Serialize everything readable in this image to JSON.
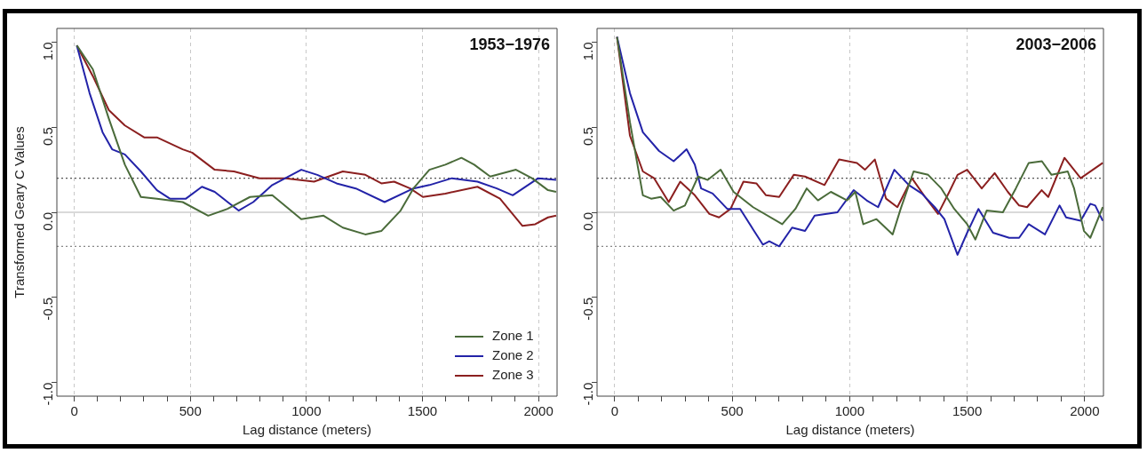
{
  "chart_data": [
    {
      "type": "line",
      "title": "1953−1976",
      "xlabel": "Lag distance (meters)",
      "ylabel": "Transformed Geary C Values",
      "xlim": [
        -75,
        2080
      ],
      "ylim": [
        -1.08,
        1.08
      ],
      "xticks": [
        0,
        {
          "value": 100,
          "label": null
        },
        {
          "value": 200,
          "label": null
        },
        {
          "value": 300,
          "label": null
        },
        {
          "value": 400,
          "label": null
        },
        500,
        {
          "value": 600,
          "label": null
        },
        {
          "value": 700,
          "label": null
        },
        {
          "value": 800,
          "label": null
        },
        {
          "value": 900,
          "label": null
        },
        1000,
        {
          "value": 1100,
          "label": null
        },
        {
          "value": 1200,
          "label": null
        },
        {
          "value": 1300,
          "label": null
        },
        {
          "value": 1400,
          "label": null
        },
        1500,
        {
          "value": 1600,
          "label": null
        },
        {
          "value": 1700,
          "label": null
        },
        {
          "value": 1800,
          "label": null
        },
        {
          "value": 1900,
          "label": null
        },
        2000
      ],
      "yticks": [
        {
          "value": -1,
          "label": "-1.0"
        },
        {
          "value": -0.5,
          "label": "-0.5"
        },
        {
          "value": 0,
          "label": "0.0"
        },
        {
          "value": 0.5,
          "label": "0.5"
        },
        {
          "value": 1,
          "label": "1.0"
        }
      ],
      "grid": "x",
      "legend": "bottom right",
      "line_style": "solid",
      "marker": "none",
      "ref_lines": [
        {
          "axis": "y",
          "value": 0,
          "color": "#cccccc",
          "line_style": "solid"
        },
        {
          "axis": "y",
          "value": 0.2,
          "color": "#555555",
          "line_style": "dotted"
        },
        {
          "axis": "y",
          "value": -0.2,
          "color": "#888888",
          "line_style": "dotted"
        }
      ],
      "series": [
        {
          "name": "Zone 1",
          "color": "#4a6b3a",
          "x": [
            11,
            80,
            149,
            218,
            287,
            356,
            467,
            577,
            660,
            757,
            853,
            978,
            1074,
            1157,
            1254,
            1323,
            1406,
            1461,
            1530,
            1599,
            1668,
            1723,
            1792,
            1903,
            1972,
            2041,
            2076
          ],
          "values": [
            0.98,
            0.84,
            0.55,
            0.28,
            0.09,
            0.08,
            0.06,
            -0.02,
            0.02,
            0.09,
            0.1,
            -0.04,
            -0.02,
            -0.09,
            -0.13,
            -0.11,
            0.01,
            0.14,
            0.25,
            0.28,
            0.32,
            0.28,
            0.21,
            0.25,
            0.2,
            0.13,
            0.12
          ]
        },
        {
          "name": "Zone 2",
          "color": "#2323a8",
          "x": [
            11,
            66,
            122,
            163,
            218,
            287,
            356,
            412,
            481,
            550,
            605,
            708,
            771,
            853,
            978,
            1047,
            1130,
            1213,
            1337,
            1461,
            1530,
            1627,
            1737,
            1820,
            1889,
            1999,
            2076
          ],
          "values": [
            0.98,
            0.7,
            0.47,
            0.37,
            0.34,
            0.24,
            0.13,
            0.08,
            0.08,
            0.15,
            0.12,
            0.01,
            0.06,
            0.16,
            0.25,
            0.22,
            0.17,
            0.14,
            0.06,
            0.14,
            0.16,
            0.2,
            0.18,
            0.14,
            0.1,
            0.2,
            0.19
          ]
        },
        {
          "name": "Zone 3",
          "color": "#8b1f1f",
          "x": [
            11,
            80,
            149,
            218,
            301,
            356,
            467,
            508,
            605,
            688,
            798,
            909,
            1033,
            1157,
            1254,
            1323,
            1378,
            1447,
            1502,
            1599,
            1737,
            1834,
            1931,
            1986,
            2041,
            2076
          ],
          "values": [
            0.98,
            0.8,
            0.6,
            0.51,
            0.44,
            0.44,
            0.37,
            0.35,
            0.25,
            0.24,
            0.2,
            0.2,
            0.18,
            0.24,
            0.22,
            0.17,
            0.18,
            0.14,
            0.09,
            0.11,
            0.15,
            0.08,
            -0.08,
            -0.07,
            -0.03,
            -0.02
          ]
        }
      ]
    },
    {
      "type": "line",
      "title": "2003−2006",
      "xlabel": "Lag distance (meters)",
      "xlim": [
        -75,
        2080
      ],
      "ylim": [
        -1.08,
        1.08
      ],
      "xticks": [
        0,
        {
          "value": 100,
          "label": null
        },
        {
          "value": 200,
          "label": null
        },
        {
          "value": 300,
          "label": null
        },
        {
          "value": 400,
          "label": null
        },
        500,
        {
          "value": 600,
          "label": null
        },
        {
          "value": 700,
          "label": null
        },
        {
          "value": 800,
          "label": null
        },
        {
          "value": 900,
          "label": null
        },
        1000,
        {
          "value": 1100,
          "label": null
        },
        {
          "value": 1200,
          "label": null
        },
        {
          "value": 1300,
          "label": null
        },
        {
          "value": 1400,
          "label": null
        },
        1500,
        {
          "value": 1600,
          "label": null
        },
        {
          "value": 1700,
          "label": null
        },
        {
          "value": 1800,
          "label": null
        },
        {
          "value": 1900,
          "label": null
        },
        2000
      ],
      "yticks": [
        {
          "value": -1,
          "label": "-1.0"
        },
        {
          "value": -0.5,
          "label": "-0.5"
        },
        {
          "value": 0,
          "label": "0.0"
        },
        {
          "value": 0.5,
          "label": "0.5"
        },
        {
          "value": 1,
          "label": "1.0"
        }
      ],
      "grid": "x",
      "line_style": "solid",
      "marker": "none",
      "ref_lines": [
        {
          "axis": "y",
          "value": 0,
          "color": "#cccccc",
          "line_style": "solid"
        },
        {
          "axis": "y",
          "value": 0.2,
          "color": "#555555",
          "line_style": "dotted"
        },
        {
          "axis": "y",
          "value": -0.2,
          "color": "#888888",
          "line_style": "dotted"
        }
      ],
      "series": [
        {
          "color": "#4a6b3a",
          "x": [
            10,
            65,
            120,
            155,
            196,
            251,
            299,
            355,
            396,
            451,
            506,
            589,
            713,
            769,
            817,
            865,
            920,
            989,
            1024,
            1058,
            1114,
            1183,
            1217,
            1272,
            1334,
            1390,
            1445,
            1500,
            1535,
            1583,
            1652,
            1707,
            1762,
            1818,
            1859,
            1928,
            1955,
            1997,
            2024,
            2077
          ],
          "values": [
            1.03,
            0.53,
            0.1,
            0.08,
            0.09,
            0.01,
            0.04,
            0.21,
            0.19,
            0.25,
            0.12,
            0.03,
            -0.07,
            0.02,
            0.14,
            0.07,
            0.12,
            0.07,
            0.12,
            -0.07,
            -0.04,
            -0.13,
            0.02,
            0.24,
            0.22,
            0.14,
            0.02,
            -0.07,
            -0.16,
            0.01,
            0.0,
            0.14,
            0.29,
            0.3,
            0.22,
            0.24,
            0.14,
            -0.11,
            -0.15,
            0.03
          ]
        },
        {
          "color": "#2323a8",
          "x": [
            10,
            65,
            120,
            189,
            251,
            306,
            341,
            368,
            417,
            479,
            534,
            589,
            631,
            658,
            700,
            755,
            810,
            851,
            948,
            1017,
            1072,
            1121,
            1190,
            1252,
            1307,
            1362,
            1403,
            1459,
            1500,
            1548,
            1610,
            1679,
            1721,
            1762,
            1831,
            1893,
            1921,
            1983,
            2024,
            2045,
            2077
          ],
          "values": [
            1.03,
            0.7,
            0.47,
            0.36,
            0.3,
            0.37,
            0.28,
            0.14,
            0.11,
            0.02,
            0.02,
            -0.1,
            -0.19,
            -0.17,
            -0.2,
            -0.09,
            -0.11,
            -0.02,
            0.0,
            0.13,
            0.07,
            0.03,
            0.25,
            0.16,
            0.11,
            0.03,
            -0.04,
            -0.25,
            -0.12,
            0.02,
            -0.12,
            -0.15,
            -0.15,
            -0.07,
            -0.13,
            0.04,
            -0.03,
            -0.05,
            0.05,
            0.04,
            -0.05
          ]
        },
        {
          "color": "#8b1f1f",
          "x": [
            10,
            65,
            120,
            168,
            230,
            279,
            341,
            403,
            444,
            493,
            548,
            603,
            644,
            700,
            762,
            810,
            893,
            955,
            1031,
            1065,
            1107,
            1155,
            1203,
            1265,
            1321,
            1376,
            1424,
            1459,
            1500,
            1562,
            1617,
            1673,
            1721,
            1755,
            1817,
            1845,
            1914,
            1983,
            2077
          ],
          "values": [
            1.03,
            0.45,
            0.24,
            0.2,
            0.06,
            0.18,
            0.1,
            -0.01,
            -0.03,
            0.02,
            0.18,
            0.17,
            0.1,
            0.09,
            0.22,
            0.21,
            0.16,
            0.31,
            0.29,
            0.25,
            0.31,
            0.08,
            0.03,
            0.2,
            0.09,
            -0.01,
            0.12,
            0.22,
            0.25,
            0.14,
            0.23,
            0.12,
            0.04,
            0.03,
            0.13,
            0.09,
            0.32,
            0.2,
            0.29
          ]
        }
      ]
    }
  ]
}
